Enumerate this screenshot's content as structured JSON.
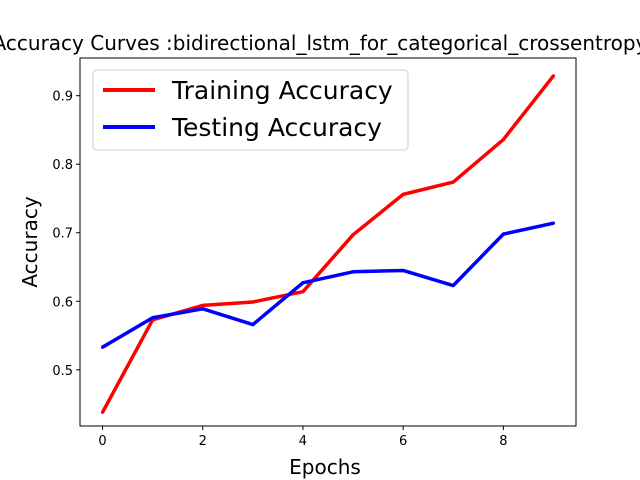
{
  "chart_data": {
    "type": "line",
    "title": "Accuracy Curves :bidirectional_lstm_for_categorical_crossentropy",
    "xlabel": "Epochs",
    "ylabel": "Accuracy",
    "x": [
      0,
      1,
      2,
      3,
      4,
      5,
      6,
      7,
      8,
      9
    ],
    "xlim": [
      -0.45,
      9.45
    ],
    "ylim": [
      0.418,
      0.955
    ],
    "xticks": [
      "0",
      "2",
      "4",
      "6",
      "8"
    ],
    "yticks": [
      "0.5",
      "0.6",
      "0.7",
      "0.8",
      "0.9"
    ],
    "grid": false,
    "legend_position": "upper-left",
    "series": [
      {
        "name": "Training Accuracy",
        "color": "#ff0000",
        "values": [
          0.438,
          0.573,
          0.594,
          0.599,
          0.614,
          0.697,
          0.756,
          0.774,
          0.836,
          0.929
        ]
      },
      {
        "name": "Testing Accuracy",
        "color": "#0000ff",
        "values": [
          0.533,
          0.576,
          0.589,
          0.566,
          0.627,
          0.643,
          0.645,
          0.623,
          0.698,
          0.714
        ]
      }
    ]
  }
}
